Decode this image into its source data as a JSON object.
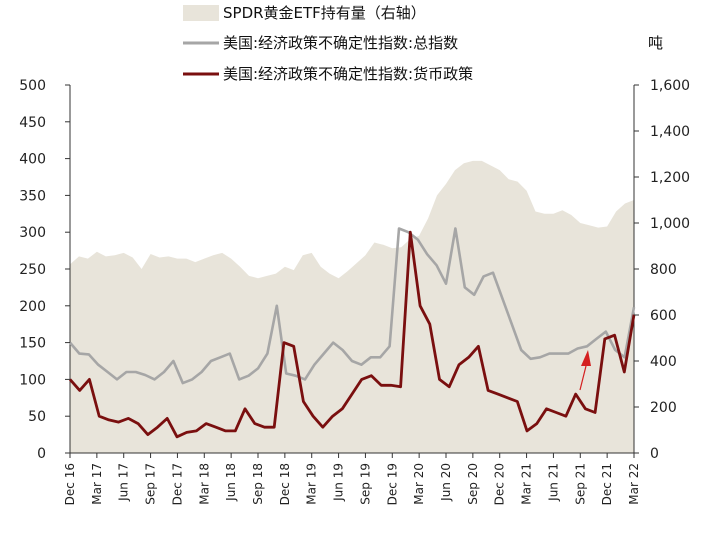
{
  "chart_data": {
    "type": "line",
    "right_unit": "吨",
    "colors": {
      "area": "#e8e4da",
      "total": "#a6a6a6",
      "monetary": "#7a0f0f",
      "arrow": "#d42020"
    },
    "legend": [
      {
        "key": "gold",
        "label": "SPDR黄金ETF持有量（右轴）"
      },
      {
        "key": "total",
        "label": "美国:经济政策不确定性指数:总指数"
      },
      {
        "key": "monetary",
        "label": "美国:经济政策不确定性指数:货币政策"
      }
    ],
    "ylim_left": [
      0,
      500
    ],
    "ylim_right": [
      0,
      1600
    ],
    "yticks_left": [
      "0",
      "50",
      "100",
      "150",
      "200",
      "250",
      "300",
      "350",
      "400",
      "450",
      "500"
    ],
    "yticks_right": [
      "0",
      "200",
      "400",
      "600",
      "800",
      "1,000",
      "1,200",
      "1,400",
      "1,600"
    ],
    "x_start": "Dec 16",
    "xticks": [
      "Dec 16",
      "Mar 17",
      "Jun 17",
      "Sep 17",
      "Dec 17",
      "Mar 18",
      "Jun 18",
      "Sep 18",
      "Dec 18",
      "Mar 19",
      "Jun 19",
      "Sep 19",
      "Dec 19",
      "Mar 20",
      "Jun 20",
      "Sep 20",
      "Dec 20",
      "Mar 21",
      "Jun 21",
      "Sep 21",
      "Dec 21",
      "Mar 22"
    ],
    "gold_holdings": [
      820,
      855,
      845,
      875,
      855,
      860,
      870,
      850,
      800,
      865,
      850,
      855,
      845,
      845,
      830,
      845,
      860,
      870,
      845,
      810,
      770,
      760,
      770,
      780,
      810,
      795,
      860,
      870,
      810,
      780,
      760,
      790,
      825,
      860,
      915,
      905,
      890,
      895,
      930,
      945,
      1020,
      1120,
      1170,
      1230,
      1260,
      1270,
      1270,
      1250,
      1230,
      1190,
      1180,
      1140,
      1050,
      1040,
      1040,
      1055,
      1035,
      1000,
      990,
      980,
      985,
      1050,
      1085,
      1100
    ],
    "total_index": [
      150,
      135,
      134,
      120,
      110,
      100,
      110,
      110,
      106,
      100,
      110,
      125,
      95,
      100,
      110,
      125,
      130,
      135,
      100,
      105,
      115,
      135,
      200,
      108,
      105,
      100,
      120,
      135,
      150,
      140,
      125,
      120,
      130,
      130,
      145,
      305,
      300,
      290,
      270,
      255,
      230,
      305,
      225,
      215,
      240,
      245,
      210,
      175,
      140,
      128,
      130,
      135,
      135,
      135,
      142,
      145,
      155,
      165,
      140,
      130,
      198
    ],
    "monetary_index": [
      100,
      85,
      100,
      50,
      45,
      42,
      47,
      40,
      25,
      35,
      47,
      22,
      28,
      30,
      40,
      35,
      30,
      30,
      60,
      40,
      35,
      35,
      150,
      145,
      70,
      50,
      35,
      50,
      60,
      80,
      100,
      105,
      92,
      92,
      90,
      300,
      200,
      175,
      100,
      90,
      120,
      130,
      145,
      85,
      80,
      75,
      70,
      30,
      40,
      60,
      55,
      50,
      80,
      60,
      55,
      155,
      160,
      110,
      188
    ],
    "arrow_note": ""
  }
}
